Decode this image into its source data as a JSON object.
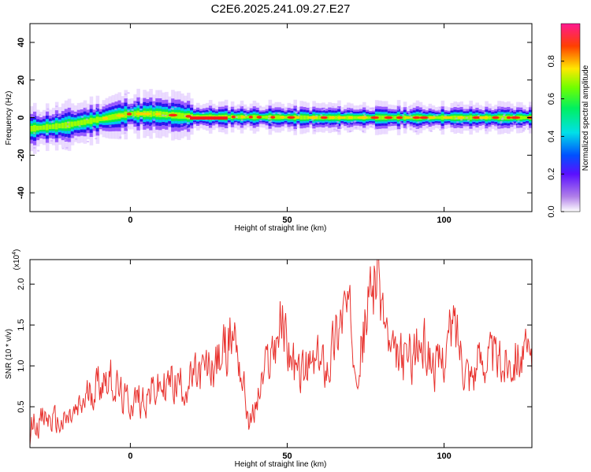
{
  "title": "C2E6.2025.241.09.27.E27",
  "chart_data": [
    {
      "type": "heatmap",
      "xlabel": "Height of straight line (km)",
      "ylabel": "Frequency (Hz)",
      "xlim": [
        -32,
        128
      ],
      "ylim": [
        -50,
        50
      ],
      "xticks": [
        0,
        50,
        100
      ],
      "yticks": [
        40,
        20,
        0,
        -20,
        -40
      ],
      "colorbar": {
        "label": "Normalized spectral amplitude",
        "range": [
          0,
          1
        ],
        "ticks": [
          "0.0",
          "0.2",
          "0.4",
          "0.6",
          "0.8"
        ],
        "colormap": "rainbow (white-violet-blue-cyan-green-yellow-red-magenta)"
      },
      "ridge_frequency_hz": [
        {
          "x": -32,
          "y": -6
        },
        {
          "x": -20,
          "y": -4
        },
        {
          "x": -10,
          "y": -1
        },
        {
          "x": 0,
          "y": 2
        },
        {
          "x": 8,
          "y": 2
        },
        {
          "x": 20,
          "y": 0.5
        },
        {
          "x": 60,
          "y": 0
        },
        {
          "x": 128,
          "y": 0
        }
      ],
      "grid": false
    },
    {
      "type": "line",
      "xlabel": "Height of straight line (km)",
      "ylabel": "SNR (10 * v/v)",
      "multiplier": "(x10",
      "multiplier_exp": "4",
      "xlim": [
        -32,
        128
      ],
      "ylim": [
        0,
        2.3
      ],
      "xticks": [
        0,
        50,
        100
      ],
      "yticks": [
        "0.5",
        "1.0",
        "1.5",
        "2.0"
      ],
      "line_color": "#e8322e",
      "series": [
        {
          "x": [
            -32,
            -27,
            -22,
            -17,
            -12,
            -7,
            -2,
            3,
            8,
            13,
            18,
            23,
            28,
            33,
            38,
            43,
            48,
            53,
            58,
            63,
            68,
            73,
            78,
            83,
            88,
            93,
            98,
            103,
            108,
            113,
            118,
            123,
            128
          ],
          "values": [
            0.3,
            0.35,
            0.28,
            0.42,
            0.75,
            0.9,
            0.55,
            0.6,
            0.7,
            0.8,
            0.78,
            0.9,
            1.05,
            1.45,
            0.25,
            0.95,
            1.55,
            0.85,
            1.0,
            1.05,
            1.75,
            1.1,
            2.25,
            1.05,
            1.1,
            1.25,
            0.95,
            1.5,
            0.9,
            1.15,
            1.0,
            1.2,
            1.0
          ]
        }
      ],
      "grid": false
    }
  ]
}
